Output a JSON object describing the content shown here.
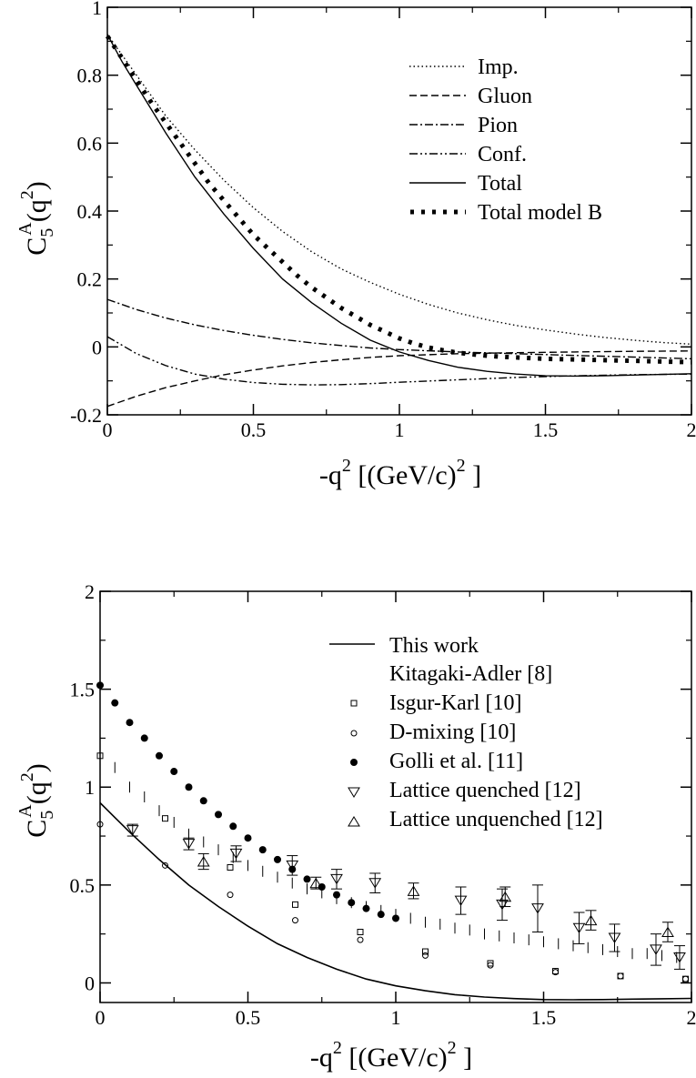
{
  "chart_data": [
    {
      "type": "line",
      "xlabel_main": "-q",
      "xlabel_sup": "2",
      "xlabel_rest": " [(GeV/c)",
      "xlabel_sup2": "2",
      "xlabel_end": " ]",
      "ylabel_main": "C",
      "ylabel_sub": "5",
      "ylabel_sup": "A",
      "ylabel_rest": "(q",
      "ylabel_sup2": "2",
      "ylabel_end": ")",
      "xlim": [
        0,
        2
      ],
      "ylim": [
        -0.2,
        1
      ],
      "xticks": [
        0,
        0.5,
        1,
        1.5,
        2
      ],
      "xtick_labels": [
        "0",
        "0.5",
        "1",
        "1.5",
        "2"
      ],
      "yticks": [
        -0.2,
        0,
        0.2,
        0.4,
        0.6,
        0.8,
        1
      ],
      "ytick_labels": [
        "-0.2",
        "0",
        "0.2",
        "0.4",
        "0.6",
        "0.8",
        "1"
      ],
      "legend_position": "top-right",
      "series": [
        {
          "name": "Imp.",
          "dash": "dot",
          "x": [
            0,
            0.1,
            0.2,
            0.3,
            0.4,
            0.5,
            0.6,
            0.7,
            0.8,
            0.9,
            1.0,
            1.1,
            1.2,
            1.3,
            1.4,
            1.5,
            1.6,
            1.7,
            1.8,
            1.9,
            2.0
          ],
          "y": [
            0.92,
            0.8,
            0.68,
            0.58,
            0.49,
            0.41,
            0.34,
            0.28,
            0.23,
            0.19,
            0.155,
            0.125,
            0.1,
            0.08,
            0.063,
            0.05,
            0.038,
            0.028,
            0.02,
            0.013,
            0.008
          ]
        },
        {
          "name": "Gluon",
          "dash": "dash",
          "x": [
            0,
            0.1,
            0.2,
            0.3,
            0.4,
            0.5,
            0.6,
            0.7,
            0.8,
            0.9,
            1.0,
            1.2,
            1.4,
            1.6,
            1.8,
            2.0
          ],
          "y": [
            -0.175,
            -0.145,
            -0.12,
            -0.1,
            -0.082,
            -0.068,
            -0.056,
            -0.046,
            -0.038,
            -0.031,
            -0.026,
            -0.02,
            -0.017,
            -0.015,
            -0.013,
            -0.012
          ]
        },
        {
          "name": "Pion",
          "dash": "dashdot",
          "x": [
            0,
            0.1,
            0.2,
            0.3,
            0.4,
            0.5,
            0.6,
            0.7,
            0.8,
            0.9,
            1.0,
            1.2,
            1.4,
            1.6,
            1.8,
            2.0
          ],
          "y": [
            0.14,
            0.11,
            0.085,
            0.065,
            0.048,
            0.034,
            0.022,
            0.012,
            0.004,
            -0.003,
            -0.008,
            -0.015,
            -0.02,
            -0.025,
            -0.03,
            -0.035
          ]
        },
        {
          "name": "Conf.",
          "dash": "dashdotdot",
          "x": [
            0,
            0.1,
            0.2,
            0.3,
            0.4,
            0.5,
            0.6,
            0.7,
            0.8,
            0.9,
            1.0,
            1.2,
            1.4,
            1.6,
            1.8,
            2.0
          ],
          "y": [
            0.03,
            -0.02,
            -0.055,
            -0.08,
            -0.095,
            -0.105,
            -0.11,
            -0.112,
            -0.111,
            -0.108,
            -0.104,
            -0.097,
            -0.09,
            -0.085,
            -0.082,
            -0.08
          ]
        },
        {
          "name": "Total",
          "dash": "solid",
          "x": [
            0,
            0.05,
            0.1,
            0.2,
            0.3,
            0.4,
            0.5,
            0.6,
            0.7,
            0.8,
            0.9,
            1.0,
            1.1,
            1.2,
            1.3,
            1.4,
            1.5,
            1.6,
            1.7,
            1.8,
            1.9,
            2.0
          ],
          "y": [
            0.92,
            0.84,
            0.77,
            0.63,
            0.5,
            0.39,
            0.29,
            0.2,
            0.13,
            0.07,
            0.02,
            -0.015,
            -0.04,
            -0.06,
            -0.072,
            -0.08,
            -0.085,
            -0.086,
            -0.085,
            -0.083,
            -0.081,
            -0.079
          ]
        },
        {
          "name": "Total model B",
          "dash": "bigdot",
          "x": [
            0,
            0.05,
            0.1,
            0.15,
            0.2,
            0.25,
            0.3,
            0.35,
            0.4,
            0.45,
            0.5,
            0.55,
            0.6,
            0.65,
            0.7,
            0.75,
            0.8,
            0.85,
            0.9,
            0.95,
            1.0,
            1.05,
            1.1,
            1.15,
            1.2,
            1.25,
            1.3,
            1.35,
            1.4,
            1.45,
            1.5,
            1.55,
            1.6,
            1.65,
            1.7,
            1.75,
            1.8,
            1.85,
            1.9,
            1.95,
            2.0
          ],
          "y": [
            0.915,
            0.85,
            0.785,
            0.72,
            0.66,
            0.6,
            0.54,
            0.48,
            0.43,
            0.38,
            0.33,
            0.29,
            0.25,
            0.21,
            0.175,
            0.145,
            0.115,
            0.09,
            0.065,
            0.045,
            0.025,
            0.01,
            -0.002,
            -0.01,
            -0.017,
            -0.022,
            -0.026,
            -0.029,
            -0.031,
            -0.033,
            -0.035,
            -0.036,
            -0.037,
            -0.038,
            -0.039,
            -0.04,
            -0.041,
            -0.042,
            -0.043,
            -0.044,
            -0.045
          ]
        }
      ]
    },
    {
      "type": "scatter",
      "xlabel_main": "-q",
      "xlabel_sup": "2",
      "xlabel_rest": " [(GeV/c)",
      "xlabel_sup2": "2",
      "xlabel_end": " ]",
      "ylabel_main": "C",
      "ylabel_sub": "5",
      "ylabel_sup": "A",
      "ylabel_rest": "(q",
      "ylabel_sup2": "2",
      "ylabel_end": ")",
      "xlim": [
        0,
        2
      ],
      "ylim": [
        -0.1,
        2
      ],
      "xticks": [
        0,
        0.5,
        1,
        1.5,
        2
      ],
      "xtick_labels": [
        "0",
        "0.5",
        "1",
        "1.5",
        "2"
      ],
      "yticks": [
        0,
        0.5,
        1,
        1.5,
        2
      ],
      "ytick_labels": [
        "0",
        "0.5",
        "1",
        "1.5",
        "2"
      ],
      "legend_position": "top-right",
      "series": [
        {
          "name": "This work",
          "marker": "line",
          "x": [
            0,
            0.1,
            0.2,
            0.3,
            0.4,
            0.5,
            0.6,
            0.7,
            0.8,
            0.9,
            1.0,
            1.1,
            1.2,
            1.3,
            1.4,
            1.5,
            1.6,
            1.7,
            1.8,
            1.9,
            2.0
          ],
          "y": [
            0.92,
            0.77,
            0.63,
            0.5,
            0.39,
            0.29,
            0.2,
            0.13,
            0.07,
            0.02,
            -0.015,
            -0.04,
            -0.06,
            -0.072,
            -0.08,
            -0.085,
            -0.086,
            -0.085,
            -0.083,
            -0.081,
            -0.079
          ]
        },
        {
          "name": "Kitagaki-Adler [8]",
          "marker": "vbar",
          "x": [
            0.05,
            0.1,
            0.15,
            0.2,
            0.25,
            0.3,
            0.35,
            0.4,
            0.45,
            0.5,
            0.55,
            0.6,
            0.65,
            0.7,
            0.75,
            0.8,
            0.85,
            0.9,
            0.95,
            1.0,
            1.05,
            1.1,
            1.15,
            1.2,
            1.25,
            1.3,
            1.35,
            1.4,
            1.45,
            1.5,
            1.55,
            1.6,
            1.65,
            1.7,
            1.75,
            1.8,
            1.85,
            1.9,
            1.95
          ],
          "y": [
            1.1,
            1.0,
            0.95,
            0.88,
            0.82,
            0.76,
            0.72,
            0.68,
            0.64,
            0.6,
            0.57,
            0.54,
            0.51,
            0.48,
            0.46,
            0.43,
            0.41,
            0.39,
            0.37,
            0.35,
            0.33,
            0.31,
            0.3,
            0.28,
            0.27,
            0.25,
            0.24,
            0.23,
            0.22,
            0.21,
            0.2,
            0.19,
            0.18,
            0.17,
            0.16,
            0.15,
            0.15,
            0.14,
            0.13
          ]
        },
        {
          "name": "Isgur-Karl [10]",
          "marker": "square",
          "x": [
            0,
            0.22,
            0.44,
            0.66,
            0.88,
            1.1,
            1.32,
            1.54,
            1.76,
            1.98
          ],
          "y": [
            1.16,
            0.84,
            0.59,
            0.4,
            0.26,
            0.16,
            0.1,
            0.06,
            0.035,
            0.02
          ]
        },
        {
          "name": "D-mixing  [10]",
          "marker": "circle",
          "x": [
            0,
            0.22,
            0.44,
            0.66,
            0.88,
            1.1,
            1.32,
            1.54,
            1.76,
            1.98
          ],
          "y": [
            0.81,
            0.6,
            0.45,
            0.32,
            0.22,
            0.14,
            0.09,
            0.055,
            0.035,
            0.02
          ]
        },
        {
          "name": "Golli et al. [11]",
          "marker": "dot",
          "x": [
            0,
            0.05,
            0.1,
            0.15,
            0.2,
            0.25,
            0.3,
            0.35,
            0.4,
            0.45,
            0.5,
            0.55,
            0.6,
            0.65,
            0.7,
            0.75,
            0.8,
            0.85,
            0.9,
            0.95,
            1.0
          ],
          "y": [
            1.52,
            1.43,
            1.33,
            1.25,
            1.16,
            1.08,
            1.0,
            0.93,
            0.86,
            0.8,
            0.74,
            0.68,
            0.63,
            0.58,
            0.53,
            0.49,
            0.45,
            0.41,
            0.38,
            0.35,
            0.33
          ]
        },
        {
          "name": " Lattice quenched [12]",
          "marker": "tri-down",
          "x": [
            0.11,
            0.3,
            0.46,
            0.65,
            0.8,
            0.93,
            1.22,
            1.36,
            1.48,
            1.62,
            1.74,
            1.88,
            1.96
          ],
          "y": [
            0.78,
            0.71,
            0.66,
            0.6,
            0.53,
            0.51,
            0.42,
            0.4,
            0.38,
            0.28,
            0.23,
            0.17,
            0.13
          ],
          "err": [
            0.03,
            0.03,
            0.04,
            0.05,
            0.05,
            0.05,
            0.07,
            0.08,
            0.12,
            0.08,
            0.07,
            0.08,
            0.06
          ]
        },
        {
          "name": " Lattice unquenched [12]",
          "marker": "tri-up",
          "x": [
            0.35,
            0.73,
            1.06,
            1.37,
            1.66,
            1.92
          ],
          "y": [
            0.62,
            0.51,
            0.47,
            0.44,
            0.32,
            0.26
          ],
          "err": [
            0.04,
            0.03,
            0.04,
            0.05,
            0.05,
            0.05
          ]
        }
      ]
    }
  ]
}
